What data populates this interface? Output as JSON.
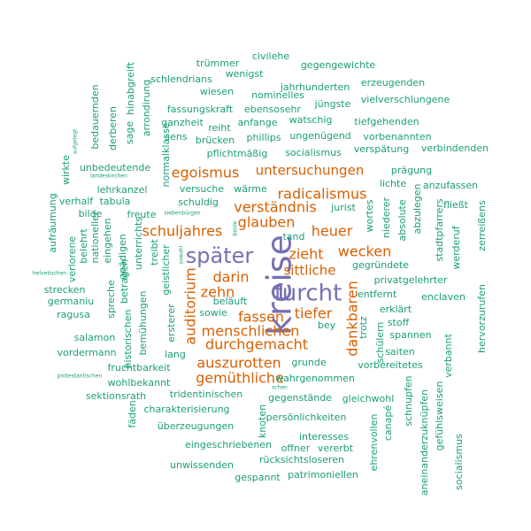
{
  "colors": {
    "small": "#1b9e77",
    "medium": "#d95f02",
    "large": "#7570b3"
  },
  "words": [
    {
      "text": "kreise",
      "tier": "large"
    },
    {
      "text": "furcht",
      "tier": "large"
    },
    {
      "text": "später",
      "tier": "large"
    },
    {
      "text": "untersuchungen",
      "tier": "medium"
    },
    {
      "text": "egoismus",
      "tier": "medium"
    },
    {
      "text": "radicalismus",
      "tier": "medium"
    },
    {
      "text": "verständnis",
      "tier": "medium"
    },
    {
      "text": "glauben",
      "tier": "medium"
    },
    {
      "text": "schuljahres",
      "tier": "medium"
    },
    {
      "text": "heuer",
      "tier": "medium"
    },
    {
      "text": "zieht",
      "tier": "medium"
    },
    {
      "text": "wecken",
      "tier": "medium"
    },
    {
      "text": "sittliche",
      "tier": "medium"
    },
    {
      "text": "darin",
      "tier": "medium"
    },
    {
      "text": "zehn",
      "tier": "medium"
    },
    {
      "text": "auditorium",
      "tier": "medium"
    },
    {
      "text": "tiefer",
      "tier": "medium"
    },
    {
      "text": "fassen",
      "tier": "medium"
    },
    {
      "text": "menschlichen",
      "tier": "medium"
    },
    {
      "text": "durchgemacht",
      "tier": "medium"
    },
    {
      "text": "dankbaren",
      "tier": "medium"
    },
    {
      "text": "auszurotten",
      "tier": "medium"
    },
    {
      "text": "gemüthliche",
      "tier": "medium"
    },
    {
      "text": "trümmer",
      "tier": "small"
    },
    {
      "text": "civilehe",
      "tier": "small"
    },
    {
      "text": "gegengewichte",
      "tier": "small"
    },
    {
      "text": "wenigst",
      "tier": "small"
    },
    {
      "text": "schlendrians",
      "tier": "small"
    },
    {
      "text": "erzeugenden",
      "tier": "small"
    },
    {
      "text": "jahrhunderten",
      "tier": "small"
    },
    {
      "text": "hinabgreift",
      "tier": "small"
    },
    {
      "text": "wiesen",
      "tier": "small"
    },
    {
      "text": "nominelles",
      "tier": "small"
    },
    {
      "text": "jüngste",
      "tier": "small"
    },
    {
      "text": "vielverschlungene",
      "tier": "small"
    },
    {
      "text": "arrondirung",
      "tier": "small"
    },
    {
      "text": "fassungskraft",
      "tier": "small"
    },
    {
      "text": "ebensosehr",
      "tier": "small"
    },
    {
      "text": "bedauernden",
      "tier": "small"
    },
    {
      "text": "derberen",
      "tier": "small"
    },
    {
      "text": "ganzheit",
      "tier": "small"
    },
    {
      "text": "anfange",
      "tier": "small"
    },
    {
      "text": "watschig",
      "tier": "small"
    },
    {
      "text": "tiefgehenden",
      "tier": "small"
    },
    {
      "text": "sage",
      "tier": "small"
    },
    {
      "text": "reiht",
      "tier": "small"
    },
    {
      "text": "phillips",
      "tier": "small"
    },
    {
      "text": "ungenügend",
      "tier": "small"
    },
    {
      "text": "vorbenannten",
      "tier": "small"
    },
    {
      "text": "normalklasse",
      "tier": "small"
    },
    {
      "text": "sens",
      "tier": "small"
    },
    {
      "text": "brücken",
      "tier": "small"
    },
    {
      "text": "verspätung",
      "tier": "small"
    },
    {
      "text": "verbindenden",
      "tier": "small"
    },
    {
      "text": "pflichtmäßig",
      "tier": "small"
    },
    {
      "text": "socialismus",
      "tier": "small"
    },
    {
      "text": "aufgelegt",
      "tier": "small"
    },
    {
      "text": "unbedeutende",
      "tier": "small"
    },
    {
      "text": "prägung",
      "tier": "small"
    },
    {
      "text": "wirkte",
      "tier": "small"
    },
    {
      "text": "landeskirchen",
      "tier": "small"
    },
    {
      "text": "lichte",
      "tier": "small"
    },
    {
      "text": "anzufassen",
      "tier": "small"
    },
    {
      "text": "lehrkanzel",
      "tier": "small"
    },
    {
      "text": "versuche",
      "tier": "small"
    },
    {
      "text": "wärme",
      "tier": "small"
    },
    {
      "text": "niederer",
      "tier": "small"
    },
    {
      "text": "absolute",
      "tier": "small"
    },
    {
      "text": "abzulegen",
      "tier": "small"
    },
    {
      "text": "verhalf",
      "tier": "small"
    },
    {
      "text": "tabula",
      "tier": "small"
    },
    {
      "text": "schuldig",
      "tier": "small"
    },
    {
      "text": "jurist",
      "tier": "small"
    },
    {
      "text": "wortes",
      "tier": "small"
    },
    {
      "text": "stadtpfarrers",
      "tier": "small"
    },
    {
      "text": "fließt",
      "tier": "small"
    },
    {
      "text": "aufräumung",
      "tier": "small"
    },
    {
      "text": "bilde",
      "tier": "small"
    },
    {
      "text": "freute",
      "tier": "small"
    },
    {
      "text": "siebenbürgen",
      "tier": "small"
    },
    {
      "text": "zerreißens",
      "tier": "small"
    },
    {
      "text": "verlorene",
      "tier": "small"
    },
    {
      "text": "belehrt",
      "tier": "small"
    },
    {
      "text": "nationeller",
      "tier": "small"
    },
    {
      "text": "eingehen",
      "tier": "small"
    },
    {
      "text": "gnädigen",
      "tier": "small"
    },
    {
      "text": "unterrichts",
      "tier": "small"
    },
    {
      "text": "tand",
      "tier": "small"
    },
    {
      "text": "werderuf",
      "tier": "small"
    },
    {
      "text": "treibt",
      "tier": "small"
    },
    {
      "text": "geistlicher",
      "tier": "small"
    },
    {
      "text": "sowohl",
      "tier": "small"
    },
    {
      "text": "beide",
      "tier": "small"
    },
    {
      "text": "gegründete",
      "tier": "small"
    },
    {
      "text": "helvetischen",
      "tier": "small"
    },
    {
      "text": "privatgelehrter",
      "tier": "small"
    },
    {
      "text": "strecken",
      "tier": "small"
    },
    {
      "text": "betragen",
      "tier": "small"
    },
    {
      "text": "entfernt",
      "tier": "small"
    },
    {
      "text": "germaniu",
      "tier": "small"
    },
    {
      "text": "enclaven",
      "tier": "small"
    },
    {
      "text": "ragusa",
      "tier": "small"
    },
    {
      "text": "spreche",
      "tier": "small"
    },
    {
      "text": "beläuft",
      "tier": "small"
    },
    {
      "text": "erklärt",
      "tier": "small"
    },
    {
      "text": "sowie",
      "tier": "small"
    },
    {
      "text": "stoff",
      "tier": "small"
    },
    {
      "text": "hervorzurufen",
      "tier": "small"
    },
    {
      "text": "bemühungen",
      "tier": "small"
    },
    {
      "text": "ersterer",
      "tier": "small"
    },
    {
      "text": "historischen",
      "tier": "small"
    },
    {
      "text": "bey",
      "tier": "small"
    },
    {
      "text": "trotz",
      "tier": "small"
    },
    {
      "text": "spannen",
      "tier": "small"
    },
    {
      "text": "salamon",
      "tier": "small"
    },
    {
      "text": "schülern",
      "tier": "small"
    },
    {
      "text": "vordermann",
      "tier": "small"
    },
    {
      "text": "fruchtbarkeit",
      "tier": "small"
    },
    {
      "text": "lang",
      "tier": "small"
    },
    {
      "text": "saiten",
      "tier": "small"
    },
    {
      "text": "vorbereitetes",
      "tier": "small"
    },
    {
      "text": "grunde",
      "tier": "small"
    },
    {
      "text": "verbannt",
      "tier": "small"
    },
    {
      "text": "wohlbekannt",
      "tier": "small"
    },
    {
      "text": "wahrgenommen",
      "tier": "small"
    },
    {
      "text": "protestantischen",
      "tier": "small"
    },
    {
      "text": "sektionsrath",
      "tier": "small"
    },
    {
      "text": "tridentinischen",
      "tier": "small"
    },
    {
      "text": "schen",
      "tier": "small"
    },
    {
      "text": "gegenstände",
      "tier": "small"
    },
    {
      "text": "gleichwohl",
      "tier": "small"
    },
    {
      "text": "charakterisierung",
      "tier": "small"
    },
    {
      "text": "fäden",
      "tier": "small"
    },
    {
      "text": "persönlichkeiten",
      "tier": "small"
    },
    {
      "text": "schnupfen",
      "tier": "small"
    },
    {
      "text": "gefühlsweisen",
      "tier": "small"
    },
    {
      "text": "überzeugungen",
      "tier": "small"
    },
    {
      "text": "knoten",
      "tier": "small"
    },
    {
      "text": "canapé",
      "tier": "small"
    },
    {
      "text": "interesses",
      "tier": "small"
    },
    {
      "text": "eingeschriebenen",
      "tier": "small"
    },
    {
      "text": "offner",
      "tier": "small"
    },
    {
      "text": "vererbt",
      "tier": "small"
    },
    {
      "text": "ehrenvollen",
      "tier": "small"
    },
    {
      "text": "aneinanderzuknüpfen",
      "tier": "small"
    },
    {
      "text": "socialismus",
      "tier": "small"
    },
    {
      "text": "unwissenden",
      "tier": "small"
    },
    {
      "text": "rücksichtsloseren",
      "tier": "small"
    },
    {
      "text": "gespannt",
      "tier": "small"
    },
    {
      "text": "patrimoniellen",
      "tier": "small"
    }
  ]
}
